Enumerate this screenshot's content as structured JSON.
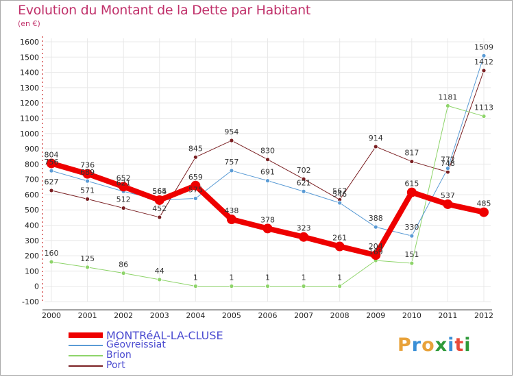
{
  "header": {
    "title": "Evolution du Montant de la Dette par Habitant",
    "subtitle": "(en €)"
  },
  "logo": {
    "text": "Proxiti",
    "colors": [
      "#e8a23a",
      "#3a8fd6",
      "#e8a23a",
      "#2f9a3a",
      "#3a8fd6",
      "#e84a3a",
      "#2f9a3a"
    ]
  },
  "chart_data": {
    "type": "line",
    "title": "Evolution du Montant de la Dette par Habitant",
    "ylabel": "(en €)",
    "xlabel": "",
    "categories": [
      "2000",
      "2001",
      "2002",
      "2003",
      "2004",
      "2005",
      "2006",
      "2007",
      "2008",
      "2009",
      "2010",
      "2011",
      "2012"
    ],
    "ylim": [
      -100,
      1600
    ],
    "yticks": [
      -100,
      0,
      100,
      200,
      300,
      400,
      500,
      600,
      700,
      800,
      900,
      1000,
      1100,
      1200,
      1300,
      1400,
      1500,
      1600
    ],
    "grid": true,
    "legend_position": "bottom-left",
    "series": [
      {
        "name": "Port",
        "color": "#7a1f22",
        "width": 1,
        "values": [
          627,
          571,
          512,
          452,
          845,
          954,
          830,
          702,
          567,
          914,
          817,
          748,
          1412
        ],
        "labels": [
          "627",
          "571",
          "512",
          "452",
          "845",
          "954",
          "830",
          "702",
          "567",
          "914",
          "817",
          "748",
          "1412"
        ]
      },
      {
        "name": "Brion",
        "color": "#8ed46a",
        "width": 1,
        "values": [
          160,
          125,
          86,
          44,
          1,
          1,
          1,
          1,
          1,
          169,
          151,
          1181,
          1113
        ],
        "labels": [
          "160",
          "125",
          "86",
          "44",
          "1",
          "1",
          "1",
          "1",
          "1",
          "169",
          "151",
          "1181",
          "1113"
        ]
      },
      {
        "name": "Géovreissiat",
        "color": "#5a9bd5",
        "width": 1,
        "values": [
          756,
          689,
          621,
          565,
          575,
          757,
          691,
          621,
          546,
          388,
          330,
          772,
          1509
        ],
        "labels": [
          "756",
          "689",
          "621",
          "565",
          "575",
          "757",
          "691",
          "621",
          "546",
          "388",
          "330",
          "772",
          "1509"
        ]
      },
      {
        "name": "MONTRéAL-LA-CLUSE",
        "color": "#ee0000",
        "width": 8,
        "values": [
          804,
          736,
          652,
          564,
          659,
          438,
          378,
          323,
          261,
          204,
          615,
          537,
          485
        ],
        "labels": [
          "804",
          "736",
          "652",
          "564",
          "659",
          "438",
          "378",
          "323",
          "261",
          "204",
          "615",
          "537",
          "485"
        ]
      }
    ],
    "legend": [
      "MONTRéAL-LA-CLUSE",
      "Géovreissiat",
      "Brion",
      "Port"
    ]
  }
}
